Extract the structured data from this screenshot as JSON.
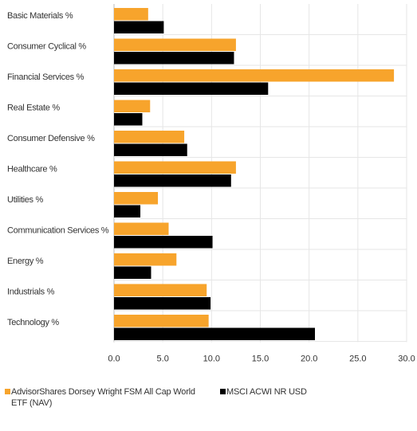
{
  "colors": {
    "fund": "#f7a42c",
    "benchmark": "#000000",
    "grid": "#e6e6e6",
    "axis": "#bbbbbb",
    "text": "#333333"
  },
  "chart_data": {
    "type": "bar",
    "orientation": "horizontal",
    "categories": [
      "Basic Materials %",
      "Consumer Cyclical %",
      "Financial Services %",
      "Real Estate %",
      "Consumer Defensive %",
      "Healthcare %",
      "Utilities %",
      "Communication Services %",
      "Energy %",
      "Industrials %",
      "Technology %"
    ],
    "series": [
      {
        "name": "AdvisorShares Dorsey Wright FSM All Cap World ETF (NAV)",
        "values": [
          3.5,
          12.5,
          28.7,
          3.7,
          7.2,
          12.5,
          4.5,
          5.6,
          6.4,
          9.5,
          9.7
        ]
      },
      {
        "name": "MSCI ACWI NR USD",
        "values": [
          5.1,
          12.3,
          15.8,
          2.9,
          7.5,
          12.0,
          2.7,
          10.1,
          3.8,
          9.9,
          20.6
        ]
      }
    ],
    "xlim": [
      0,
      30
    ],
    "x_ticks": [
      "0.0",
      "5.0",
      "10.0",
      "15.0",
      "20.0",
      "25.0",
      "30.0"
    ],
    "xlabel": "",
    "ylabel": "",
    "grid": "vertical",
    "legend_position": "bottom"
  }
}
